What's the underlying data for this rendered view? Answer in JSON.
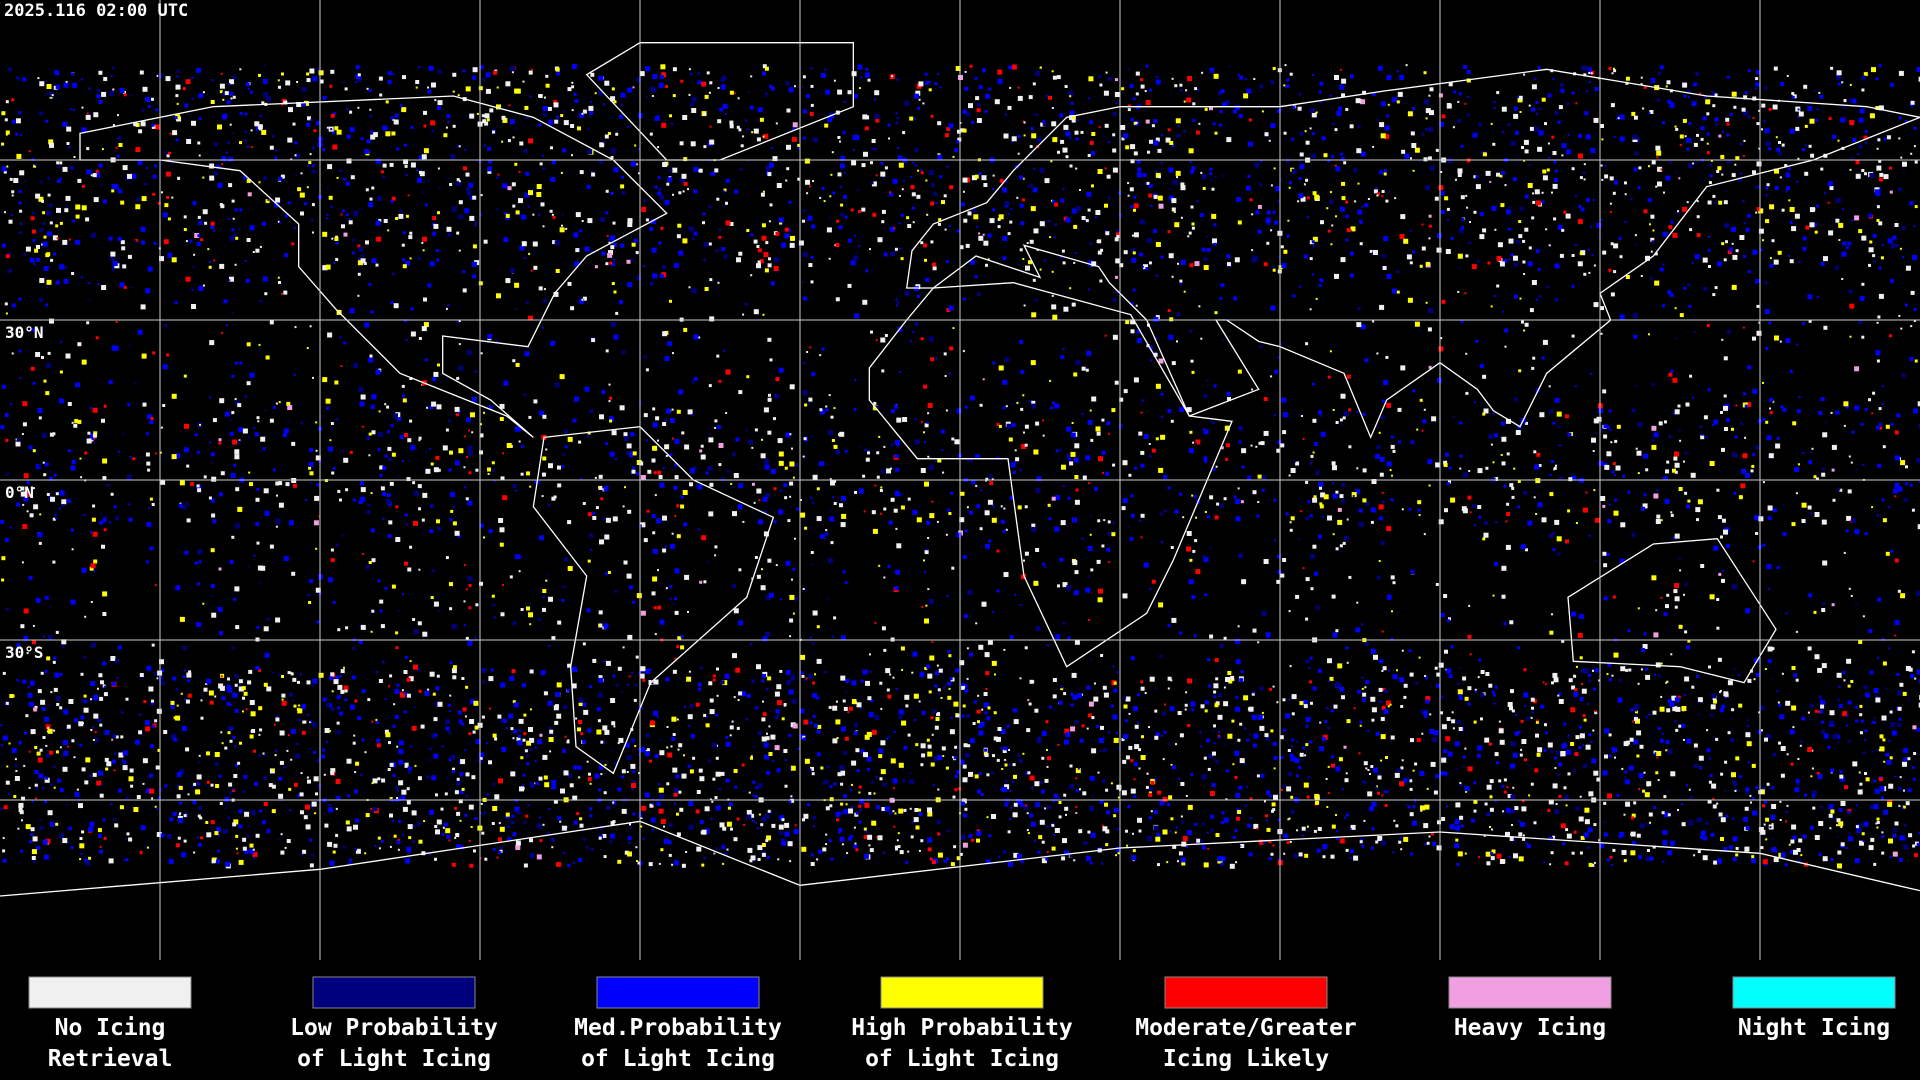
{
  "header": {
    "timestamp": "2025.116 02:00 UTC"
  },
  "grid_labels": [
    "30°N",
    "0°N",
    "30°S"
  ],
  "legend": [
    {
      "color": "#f0f0f0",
      "lines": [
        "No Icing",
        "Retrieval"
      ]
    },
    {
      "color": "#00007f",
      "lines": [
        "Low Probability",
        "of Light Icing"
      ]
    },
    {
      "color": "#0000ff",
      "lines": [
        "Med.Probability",
        "of Light Icing"
      ]
    },
    {
      "color": "#ffff00",
      "lines": [
        "High Probability",
        "of Light Icing"
      ]
    },
    {
      "color": "#ff0000",
      "lines": [
        "Moderate/Greater",
        "Icing Likely"
      ]
    },
    {
      "color": "#f0a0e0",
      "lines": [
        "Heavy Icing"
      ]
    },
    {
      "color": "#00ffff",
      "lines": [
        "Night Icing"
      ]
    }
  ]
}
